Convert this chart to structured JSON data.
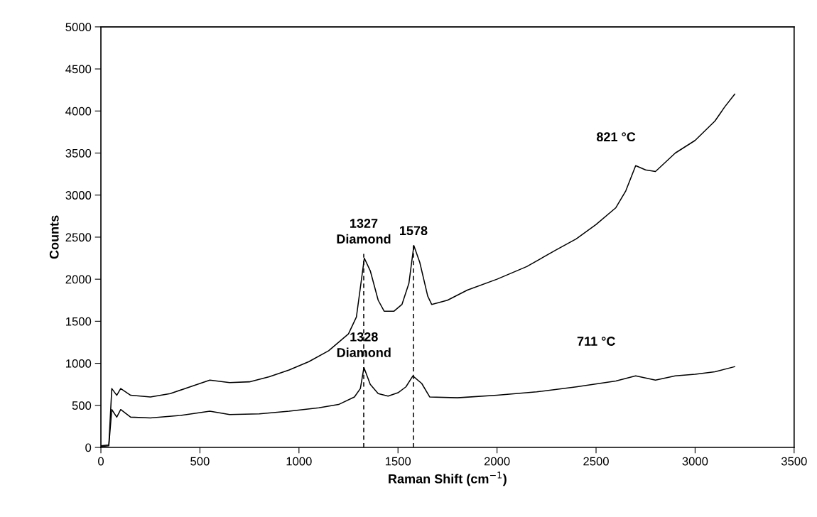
{
  "chart_data": {
    "type": "line",
    "xlabel": "Raman Shift (cm$^{−1}$)",
    "ylabel": "Counts",
    "xlim": [
      0,
      3500
    ],
    "xticks": [
      0,
      500,
      1000,
      1500,
      2000,
      2500,
      3000,
      3500
    ],
    "ylim": [
      0,
      5000
    ],
    "yticks": [
      0,
      500,
      1000,
      1500,
      2000,
      2500,
      3000,
      3500,
      4000,
      4500,
      5000
    ],
    "grid": false,
    "legend": false,
    "marker": "none",
    "series": [
      {
        "name": "821 °C",
        "color": "#000000",
        "line_style": "solid",
        "x": [
          0,
          40,
          55,
          80,
          100,
          150,
          250,
          350,
          450,
          550,
          650,
          750,
          850,
          950,
          1050,
          1150,
          1250,
          1290,
          1310,
          1330,
          1360,
          1400,
          1430,
          1480,
          1520,
          1555,
          1580,
          1610,
          1650,
          1670,
          1750,
          1850,
          2000,
          2150,
          2300,
          2400,
          2500,
          2600,
          2650,
          2700,
          2750,
          2800,
          2900,
          3000,
          3100,
          3150,
          3200
        ],
        "values": [
          20,
          30,
          700,
          620,
          700,
          620,
          600,
          640,
          720,
          800,
          770,
          780,
          840,
          920,
          1020,
          1150,
          1350,
          1550,
          1900,
          2250,
          2100,
          1750,
          1620,
          1620,
          1700,
          1950,
          2400,
          2200,
          1800,
          1700,
          1750,
          1870,
          2000,
          2150,
          2350,
          2480,
          2650,
          2850,
          3050,
          3350,
          3300,
          3280,
          3500,
          3650,
          3880,
          4050,
          4200
        ]
      },
      {
        "name": "711 °C",
        "color": "#000000",
        "line_style": "solid",
        "x": [
          0,
          40,
          55,
          80,
          100,
          150,
          250,
          400,
          550,
          650,
          800,
          950,
          1100,
          1200,
          1280,
          1310,
          1328,
          1360,
          1400,
          1450,
          1500,
          1540,
          1575,
          1620,
          1660,
          1800,
          2000,
          2200,
          2400,
          2600,
          2700,
          2800,
          2900,
          3000,
          3100,
          3200
        ],
        "values": [
          10,
          20,
          450,
          360,
          450,
          360,
          350,
          380,
          430,
          390,
          400,
          430,
          470,
          510,
          600,
          700,
          950,
          750,
          640,
          610,
          650,
          720,
          850,
          760,
          600,
          590,
          620,
          660,
          720,
          790,
          850,
          800,
          850,
          870,
          900,
          960
        ]
      },
      {
        "color": "#000000",
        "line_style": "dashed",
        "x": [
          1327,
          1327
        ],
        "values": [
          0,
          2300
        ]
      },
      {
        "color": "#000000",
        "line_style": "dashed",
        "x": [
          1578,
          1578
        ],
        "values": [
          0,
          2400
        ]
      }
    ],
    "annotations": [
      {
        "text": "1327\nDiamond",
        "x": 1327,
        "y": 2300
      },
      {
        "text": "1578",
        "x": 1578,
        "y": 2400
      },
      {
        "text": "1328\nDiamond",
        "x": 1328,
        "y": 950
      }
    ]
  }
}
